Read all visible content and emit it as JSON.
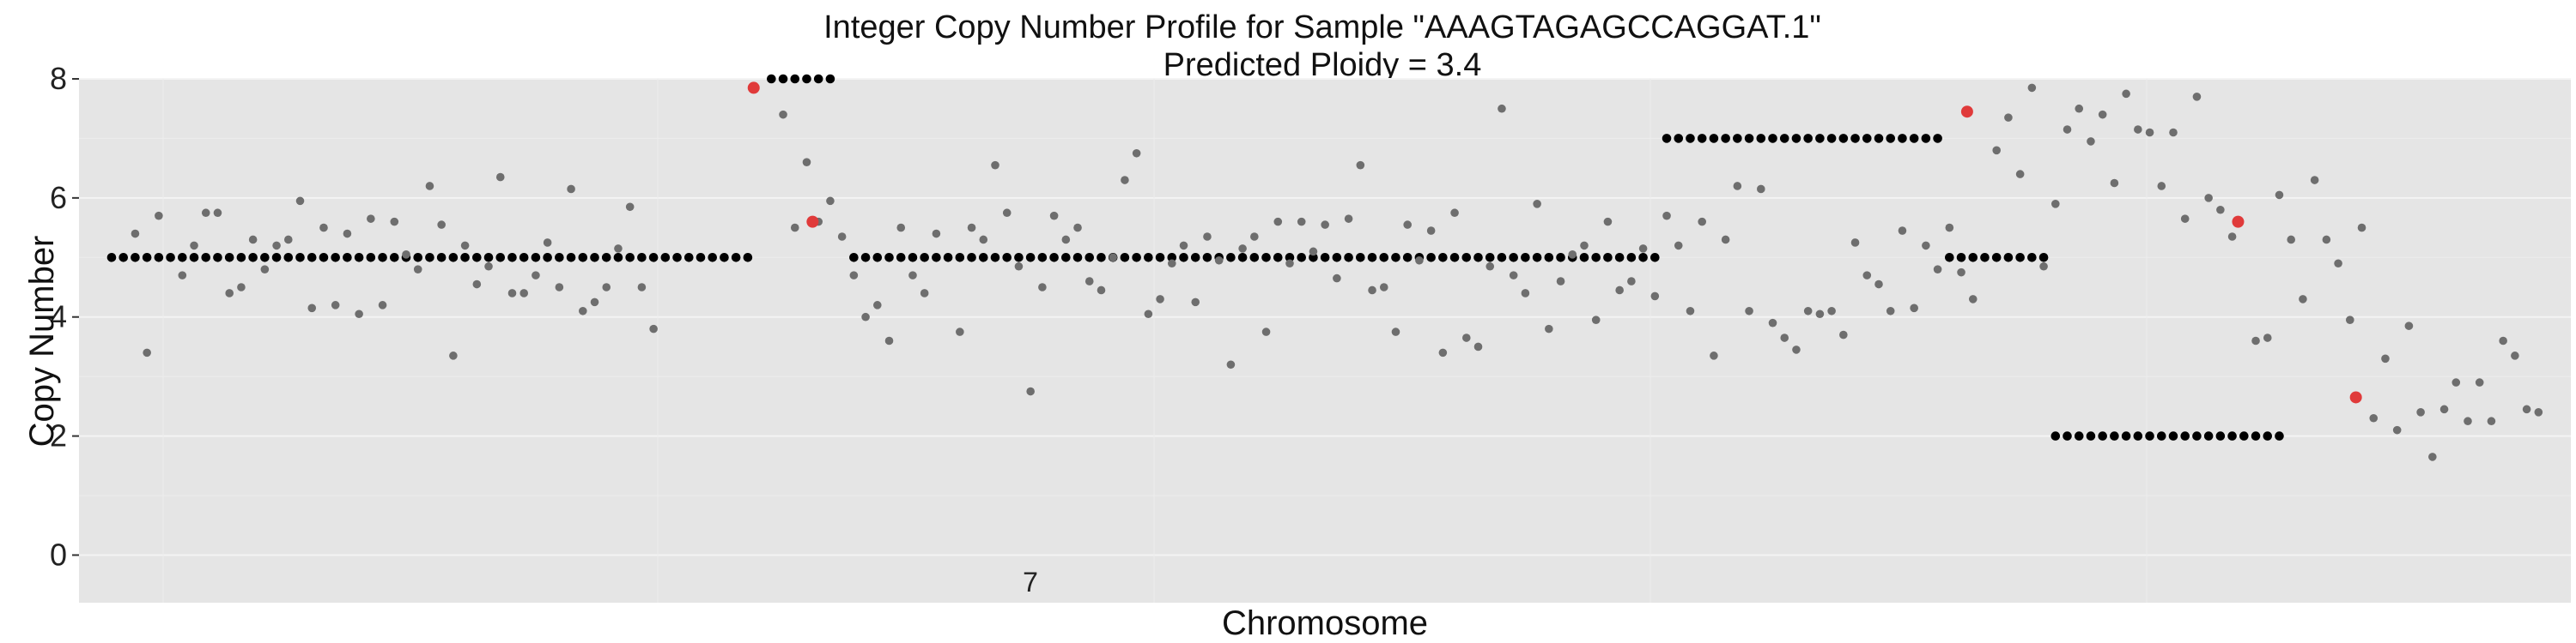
{
  "chart_data": {
    "type": "scatter",
    "title": "Integer Copy Number Profile for Sample \"AAAGTAGAGCCAGGAT.1\"",
    "subtitle": "Predicted Ploidy = 3.4",
    "xlabel": "Chromosome",
    "ylabel": "Copy Number",
    "x_tick_labels": [
      "7"
    ],
    "ylim": [
      -0.8,
      8
    ],
    "yticks": [
      0,
      2,
      4,
      6,
      8
    ],
    "grid": true,
    "colors": {
      "panel": "#e5e5e5",
      "segment": "#000000",
      "observed": "#6e6e6e",
      "breakpoint": "#e03a3a"
    },
    "segments": [
      {
        "start": 1,
        "end": 55,
        "copy_number": 5
      },
      {
        "start": 57,
        "end": 62,
        "copy_number": 8
      },
      {
        "start": 64,
        "end": 132,
        "copy_number": 5
      },
      {
        "start": 133,
        "end": 156,
        "copy_number": 7
      },
      {
        "start": 157,
        "end": 165,
        "copy_number": 5
      },
      {
        "start": 166,
        "end": 185,
        "copy_number": 2
      }
    ],
    "observed_points": [
      [
        3,
        5.4
      ],
      [
        4,
        3.4
      ],
      [
        5,
        5.7
      ],
      [
        7,
        4.7
      ],
      [
        8,
        5.2
      ],
      [
        9,
        5.75
      ],
      [
        10,
        5.75
      ],
      [
        11,
        4.4
      ],
      [
        12,
        4.5
      ],
      [
        13,
        5.3
      ],
      [
        14,
        4.8
      ],
      [
        15,
        5.2
      ],
      [
        16,
        5.3
      ],
      [
        17,
        5.95
      ],
      [
        18,
        4.15
      ],
      [
        19,
        5.5
      ],
      [
        20,
        4.2
      ],
      [
        21,
        5.4
      ],
      [
        22,
        4.05
      ],
      [
        23,
        5.65
      ],
      [
        24,
        4.2
      ],
      [
        25,
        5.6
      ],
      [
        26,
        5.05
      ],
      [
        27,
        4.8
      ],
      [
        28,
        6.2
      ],
      [
        29,
        5.55
      ],
      [
        30,
        3.35
      ],
      [
        31,
        5.2
      ],
      [
        32,
        4.55
      ],
      [
        33,
        4.85
      ],
      [
        34,
        6.35
      ],
      [
        35,
        4.4
      ],
      [
        36,
        4.4
      ],
      [
        37,
        4.7
      ],
      [
        38,
        5.25
      ],
      [
        39,
        4.5
      ],
      [
        40,
        6.15
      ],
      [
        41,
        4.1
      ],
      [
        42,
        4.25
      ],
      [
        43,
        4.5
      ],
      [
        44,
        5.15
      ],
      [
        45,
        5.85
      ],
      [
        46,
        4.5
      ],
      [
        47,
        3.8
      ],
      [
        58,
        7.4
      ],
      [
        59,
        5.5
      ],
      [
        60,
        6.6
      ],
      [
        61,
        5.6
      ],
      [
        62,
        5.95
      ],
      [
        63,
        5.35
      ],
      [
        64,
        4.7
      ],
      [
        65,
        4.0
      ],
      [
        66,
        4.2
      ],
      [
        67,
        3.6
      ],
      [
        68,
        5.5
      ],
      [
        69,
        4.7
      ],
      [
        70,
        4.4
      ],
      [
        71,
        5.4
      ],
      [
        73,
        3.75
      ],
      [
        74,
        5.5
      ],
      [
        75,
        5.3
      ],
      [
        76,
        6.55
      ],
      [
        77,
        5.75
      ],
      [
        78,
        4.85
      ],
      [
        79,
        2.75
      ],
      [
        80,
        4.5
      ],
      [
        81,
        5.7
      ],
      [
        82,
        5.3
      ],
      [
        83,
        5.5
      ],
      [
        84,
        4.6
      ],
      [
        85,
        4.45
      ],
      [
        86,
        5.0
      ],
      [
        87,
        6.3
      ],
      [
        88,
        6.75
      ],
      [
        89,
        4.05
      ],
      [
        90,
        4.3
      ],
      [
        91,
        4.9
      ],
      [
        92,
        5.2
      ],
      [
        93,
        4.25
      ],
      [
        94,
        5.35
      ],
      [
        95,
        4.95
      ],
      [
        96,
        3.2
      ],
      [
        97,
        5.15
      ],
      [
        98,
        5.35
      ],
      [
        99,
        3.75
      ],
      [
        100,
        5.6
      ],
      [
        101,
        4.9
      ],
      [
        102,
        5.6
      ],
      [
        103,
        5.1
      ],
      [
        104,
        5.55
      ],
      [
        105,
        4.65
      ],
      [
        106,
        5.65
      ],
      [
        107,
        6.55
      ],
      [
        108,
        4.45
      ],
      [
        109,
        4.5
      ],
      [
        110,
        3.75
      ],
      [
        111,
        5.55
      ],
      [
        112,
        4.95
      ],
      [
        113,
        5.45
      ],
      [
        114,
        3.4
      ],
      [
        115,
        5.75
      ],
      [
        116,
        3.65
      ],
      [
        117,
        3.5
      ],
      [
        118,
        4.85
      ],
      [
        119,
        7.5
      ],
      [
        120,
        4.7
      ],
      [
        121,
        4.4
      ],
      [
        122,
        5.9
      ],
      [
        123,
        3.8
      ],
      [
        124,
        4.6
      ],
      [
        125,
        5.05
      ],
      [
        126,
        5.2
      ],
      [
        127,
        3.95
      ],
      [
        128,
        5.6
      ],
      [
        129,
        4.45
      ],
      [
        130,
        4.6
      ],
      [
        131,
        5.15
      ],
      [
        132,
        4.35
      ],
      [
        133,
        5.7
      ],
      [
        134,
        5.2
      ],
      [
        135,
        4.1
      ],
      [
        136,
        5.6
      ],
      [
        137,
        3.35
      ],
      [
        138,
        5.3
      ],
      [
        139,
        6.2
      ],
      [
        140,
        4.1
      ],
      [
        141,
        6.15
      ],
      [
        142,
        3.9
      ],
      [
        143,
        3.65
      ],
      [
        144,
        3.45
      ],
      [
        145,
        4.1
      ],
      [
        146,
        4.05
      ],
      [
        147,
        4.1
      ],
      [
        148,
        3.7
      ],
      [
        149,
        5.25
      ],
      [
        150,
        4.7
      ],
      [
        151,
        4.55
      ],
      [
        152,
        4.1
      ],
      [
        153,
        5.45
      ],
      [
        154,
        4.15
      ],
      [
        155,
        5.2
      ],
      [
        156,
        4.8
      ],
      [
        157,
        5.5
      ],
      [
        158,
        4.75
      ],
      [
        159,
        4.3
      ],
      [
        161,
        6.8
      ],
      [
        162,
        7.35
      ],
      [
        163,
        6.4
      ],
      [
        164,
        7.85
      ],
      [
        165,
        4.85
      ],
      [
        166,
        5.9
      ],
      [
        167,
        7.15
      ],
      [
        168,
        7.5
      ],
      [
        169,
        6.95
      ],
      [
        170,
        7.4
      ],
      [
        171,
        6.25
      ],
      [
        172,
        7.75
      ],
      [
        173,
        7.15
      ],
      [
        174,
        7.1
      ],
      [
        175,
        6.2
      ],
      [
        176,
        7.1
      ],
      [
        177,
        5.65
      ],
      [
        178,
        7.7
      ],
      [
        179,
        6.0
      ],
      [
        180,
        5.8
      ],
      [
        181,
        5.35
      ],
      [
        183,
        3.6
      ],
      [
        184,
        3.65
      ],
      [
        185,
        6.05
      ],
      [
        186,
        5.3
      ],
      [
        187,
        4.3
      ],
      [
        188,
        6.3
      ],
      [
        189,
        5.3
      ],
      [
        190,
        4.9
      ],
      [
        191,
        3.95
      ],
      [
        192,
        5.5
      ],
      [
        193,
        2.3
      ],
      [
        194,
        3.3
      ],
      [
        195,
        2.1
      ],
      [
        196,
        3.85
      ],
      [
        197,
        2.4
      ],
      [
        198,
        1.65
      ],
      [
        199,
        2.45
      ],
      [
        200,
        2.9
      ],
      [
        201,
        2.25
      ],
      [
        202,
        2.9
      ],
      [
        203,
        2.25
      ],
      [
        204,
        3.6
      ],
      [
        205,
        3.35
      ],
      [
        206,
        2.45
      ],
      [
        207,
        2.4
      ]
    ],
    "breakpoint_points": [
      [
        55.5,
        7.85
      ],
      [
        60.5,
        5.6
      ],
      [
        158.5,
        7.45
      ],
      [
        181.5,
        5.6
      ],
      [
        191.5,
        2.65
      ]
    ]
  }
}
